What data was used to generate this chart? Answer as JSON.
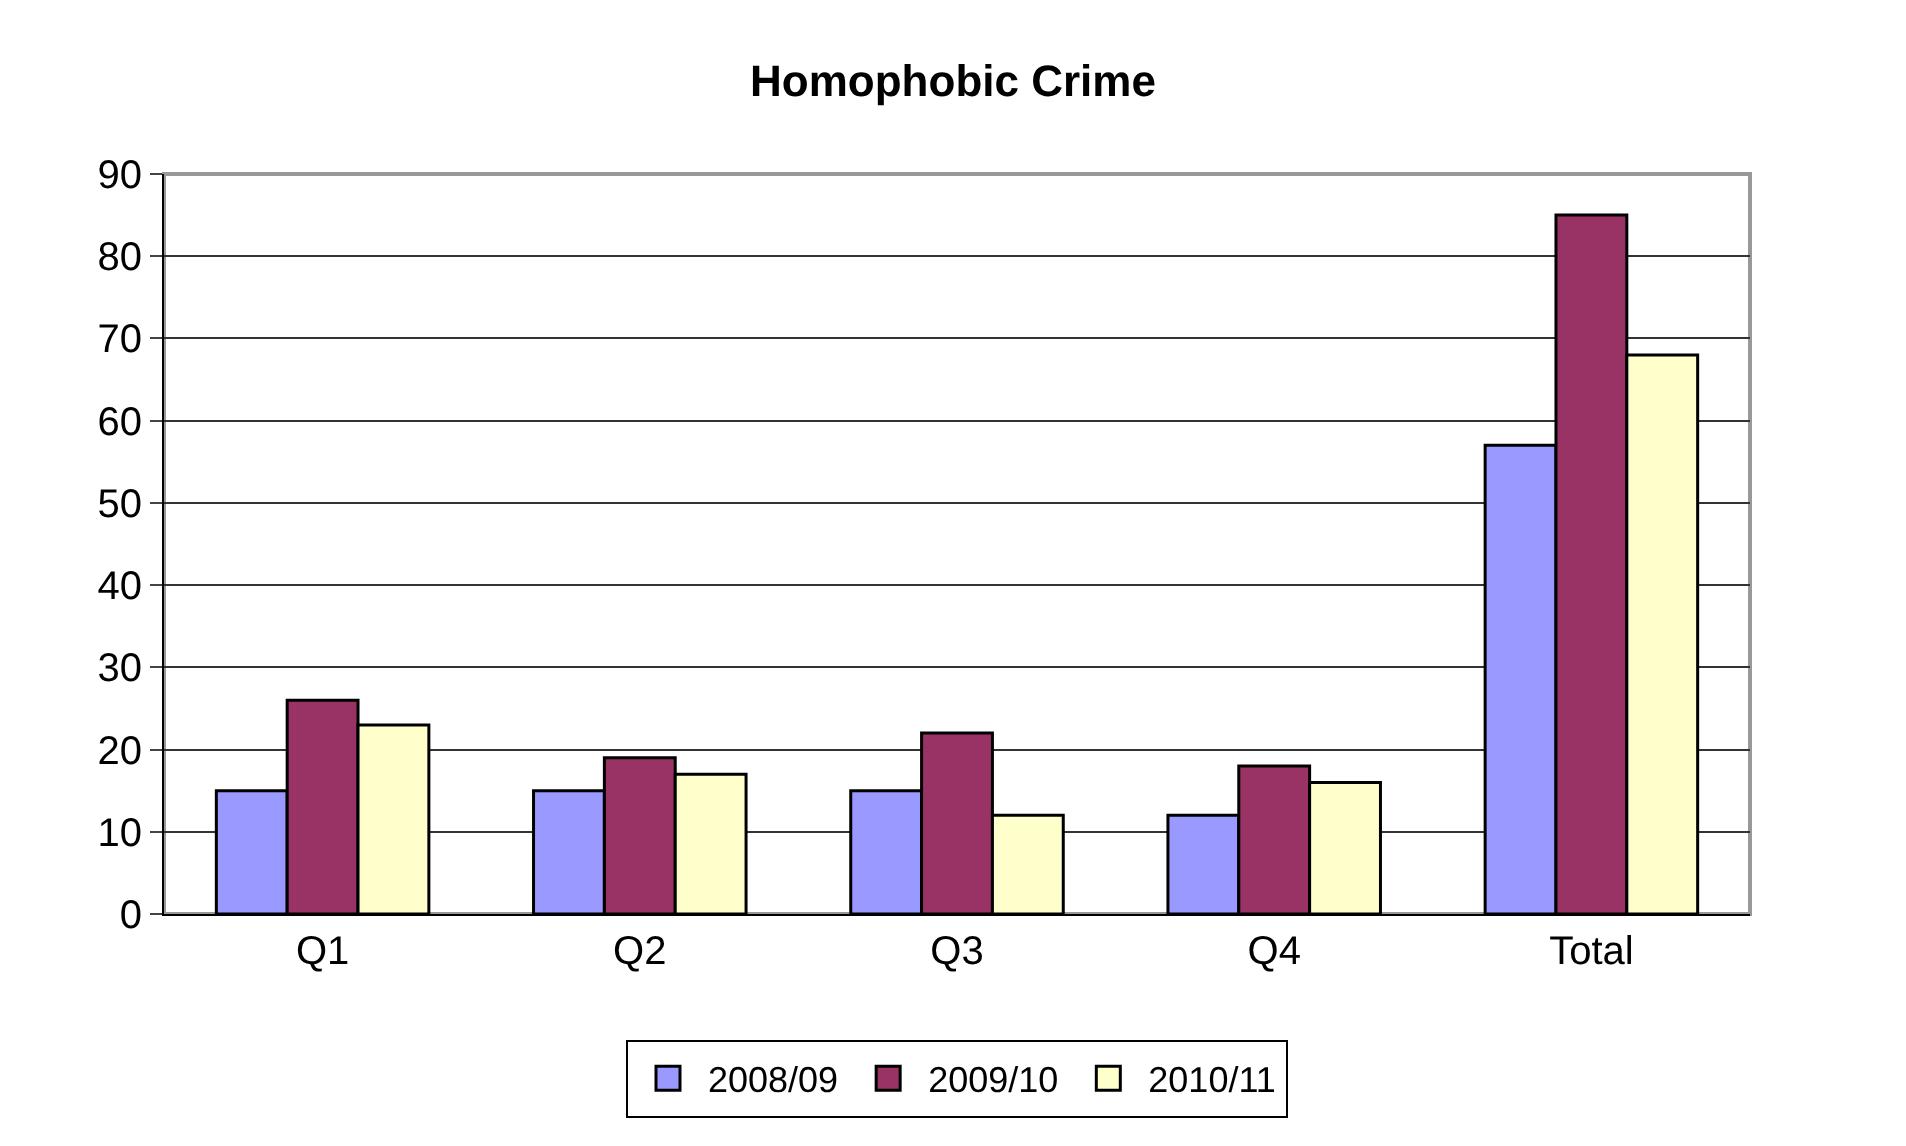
{
  "chart_data": {
    "type": "bar",
    "title": "Homophobic Crime",
    "categories": [
      "Q1",
      "Q2",
      "Q3",
      "Q4",
      "Total"
    ],
    "series": [
      {
        "name": "2008/09",
        "color": "#9999ff",
        "values": [
          15,
          15,
          15,
          12,
          57
        ]
      },
      {
        "name": "2009/10",
        "color": "#993366",
        "values": [
          26,
          19,
          22,
          18,
          85
        ]
      },
      {
        "name": "2010/11",
        "color": "#ffffcc",
        "values": [
          23,
          17,
          12,
          16,
          68
        ]
      }
    ],
    "ylim": [
      0,
      90
    ],
    "yticks": [
      0,
      10,
      20,
      30,
      40,
      50,
      60,
      70,
      80,
      90
    ],
    "grid": "y",
    "legend": "bottom"
  }
}
